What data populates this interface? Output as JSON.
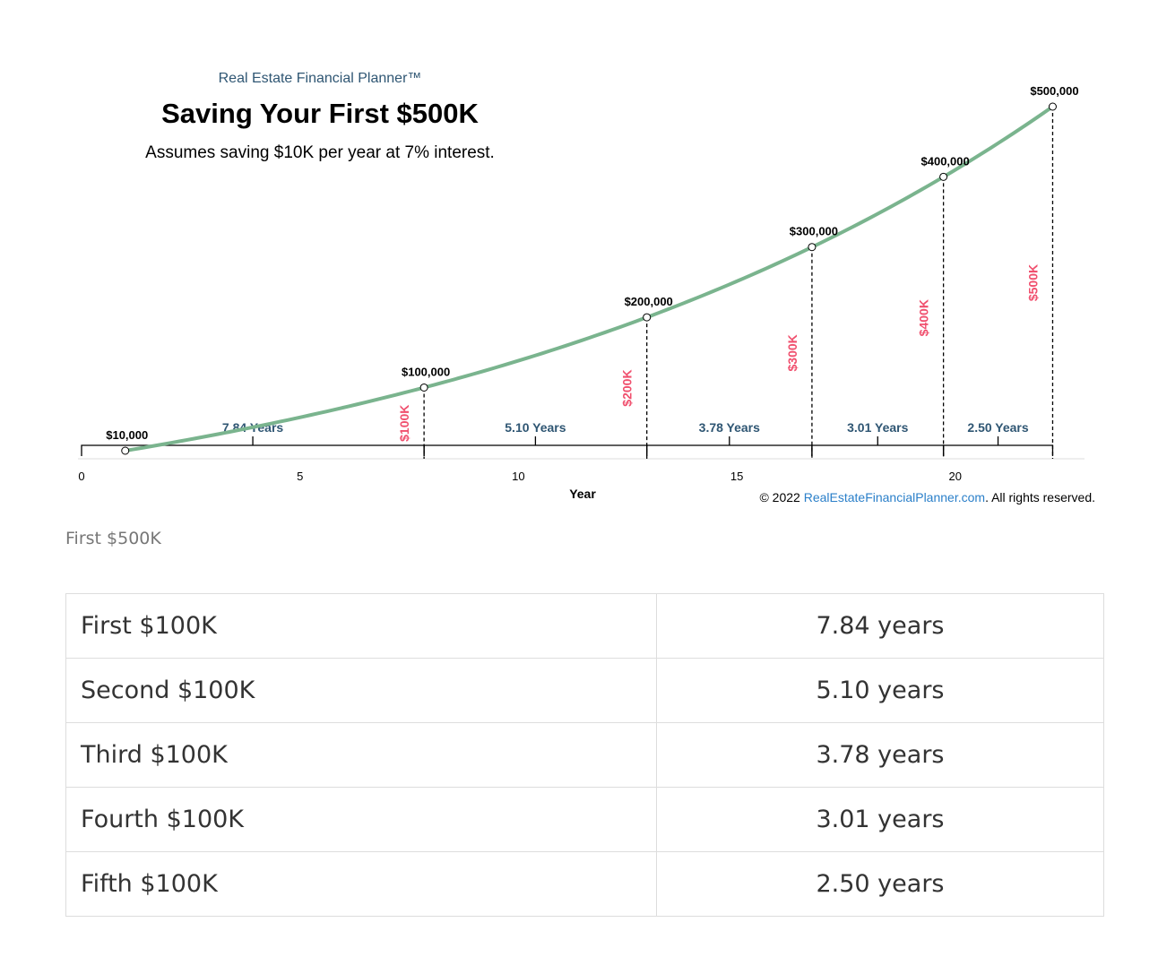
{
  "chart_data": {
    "type": "line",
    "brand": "Real Estate Financial Planner™",
    "title": "Saving Your First $500K",
    "subtitle": "Assumes saving $10K per year at 7% interest.",
    "xlabel": "Year",
    "xlim": [
      0,
      23
    ],
    "x_ticks": [
      0,
      5,
      10,
      15,
      20
    ],
    "ylim": [
      0,
      520000
    ],
    "curve": {
      "annual_saving": 10000,
      "rate": 0.07,
      "x_start": 1,
      "x_end": 22.23
    },
    "points": [
      {
        "x": 1,
        "y": 10000,
        "label": "$10,000"
      },
      {
        "x": 7.84,
        "y": 100000,
        "label": "$100,000",
        "marker": "$100K"
      },
      {
        "x": 12.94,
        "y": 200000,
        "label": "$200,000",
        "marker": "$200K"
      },
      {
        "x": 16.72,
        "y": 300000,
        "label": "$300,000",
        "marker": "$300K"
      },
      {
        "x": 19.73,
        "y": 400000,
        "label": "$400,000",
        "marker": "$400K"
      },
      {
        "x": 22.23,
        "y": 500000,
        "label": "$500,000",
        "marker": "$500K"
      }
    ],
    "intervals": [
      {
        "from": 0,
        "to": 7.84,
        "label": "7.84 Years"
      },
      {
        "from": 7.84,
        "to": 12.94,
        "label": "5.10 Years"
      },
      {
        "from": 12.94,
        "to": 16.72,
        "label": "3.78 Years"
      },
      {
        "from": 16.72,
        "to": 19.73,
        "label": "3.01 Years"
      },
      {
        "from": 19.73,
        "to": 22.23,
        "label": "2.50 Years"
      }
    ],
    "line_color": "#7ab48e",
    "interval_label_color": "#2f5673",
    "marker_color": "#f0506e"
  },
  "copyright": {
    "prefix": "© 2022 ",
    "link": "RealEstateFinancialPlanner.com",
    "suffix": ". All rights reserved.",
    "link_color": "#2a7fc9"
  },
  "caption": "First $500K",
  "table": {
    "rows": [
      {
        "label": "First $100K",
        "value": "7.84 years"
      },
      {
        "label": "Second $100K",
        "value": "5.10 years"
      },
      {
        "label": "Third $100K",
        "value": "3.78 years"
      },
      {
        "label": "Fourth $100K",
        "value": "3.01 years"
      },
      {
        "label": "Fifth $100K",
        "value": "2.50 years"
      }
    ]
  }
}
